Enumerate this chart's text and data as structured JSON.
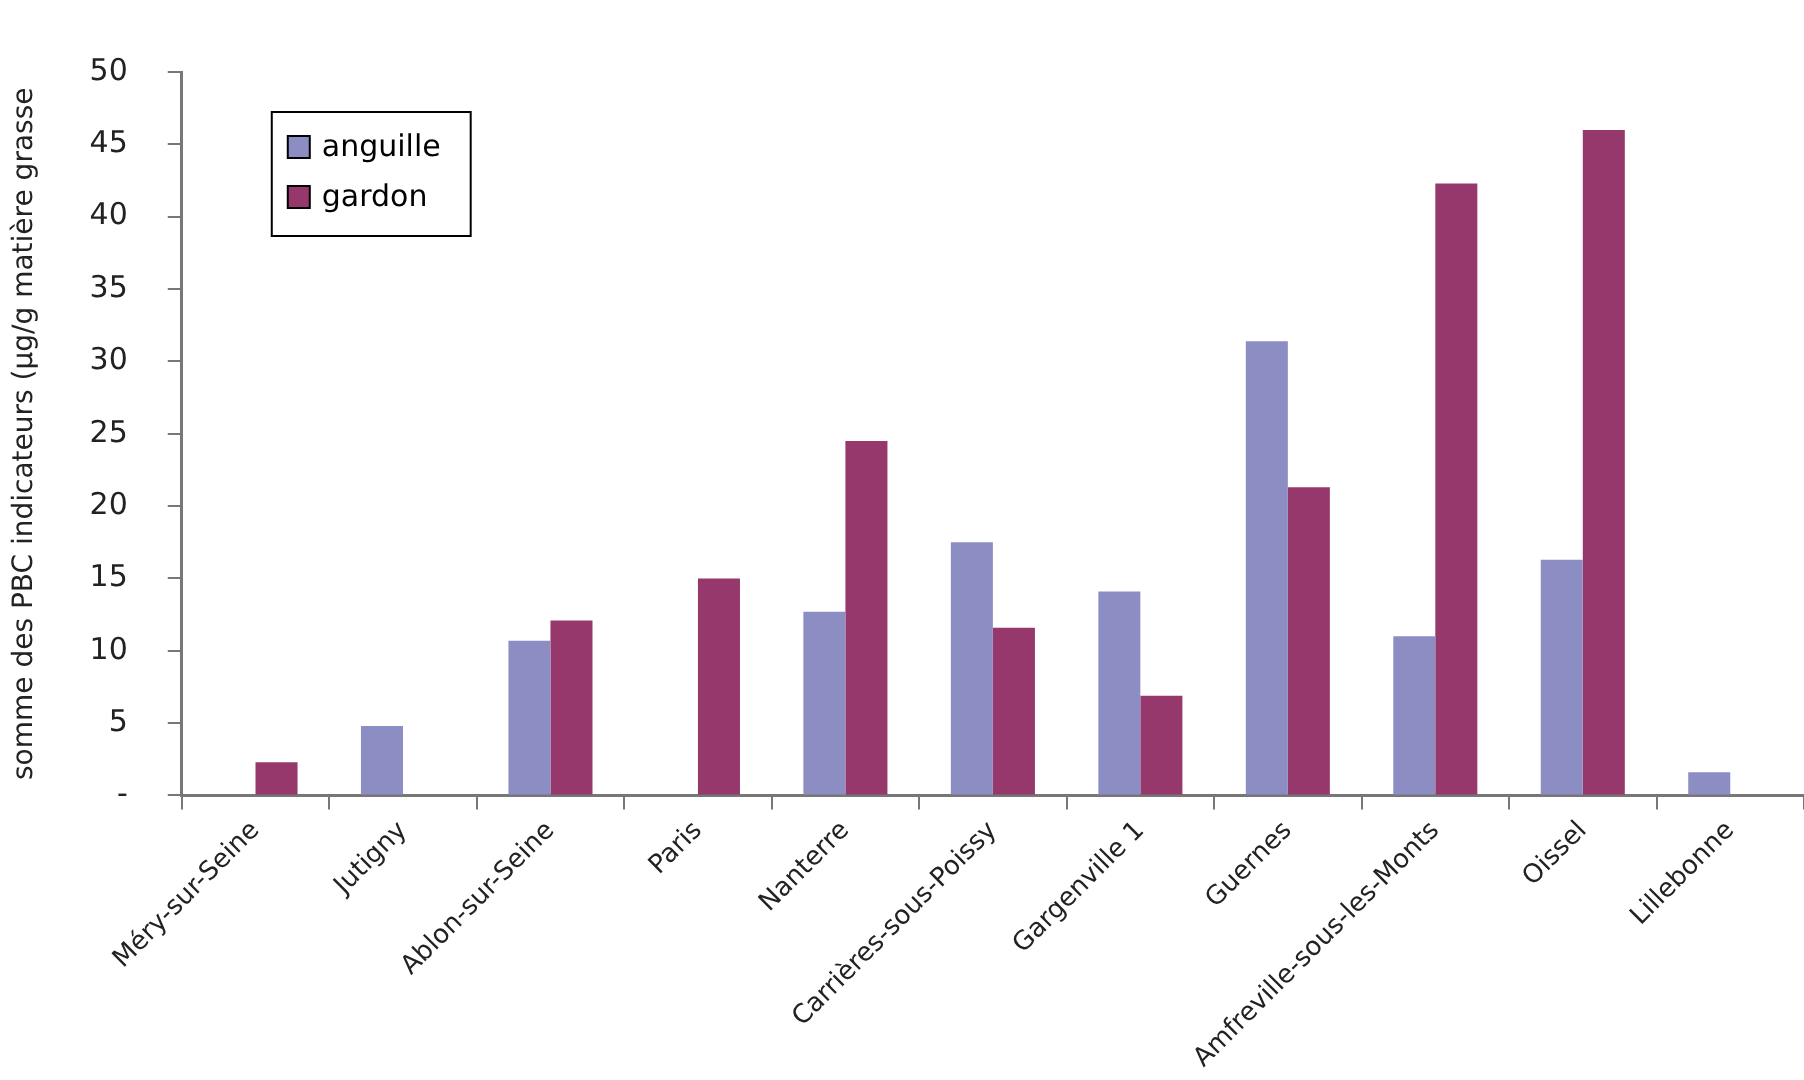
{
  "chart_data": {
    "type": "bar",
    "ylabel": "somme des PBC indicateurs (µg/g matière grasse",
    "categories": [
      "Méry-sur-Seine",
      "Jutigny",
      "Ablon-sur-Seine",
      "Paris",
      "Nanterre",
      "Carrières-sous-Poissy",
      "Gargenville 1",
      "Guernes",
      "Amfreville-sous-les-Monts",
      "Oissel",
      "Lillebonne"
    ],
    "series": [
      {
        "name": "anguille",
        "color": "#8b8dc3",
        "values": [
          null,
          4.8,
          10.7,
          null,
          12.7,
          17.5,
          14.1,
          31.4,
          11.0,
          16.3,
          1.6
        ]
      },
      {
        "name": "gardon",
        "color": "#96386b",
        "values": [
          2.3,
          null,
          12.1,
          15.0,
          24.5,
          11.6,
          6.9,
          21.3,
          42.3,
          46.0,
          null
        ]
      }
    ],
    "ylim": [
      0,
      50
    ],
    "yticks": [
      {
        "value": 0,
        "label": "-"
      },
      5,
      10,
      15,
      20,
      25,
      30,
      35,
      40,
      45,
      50
    ],
    "grid": false,
    "legend": "top left"
  }
}
